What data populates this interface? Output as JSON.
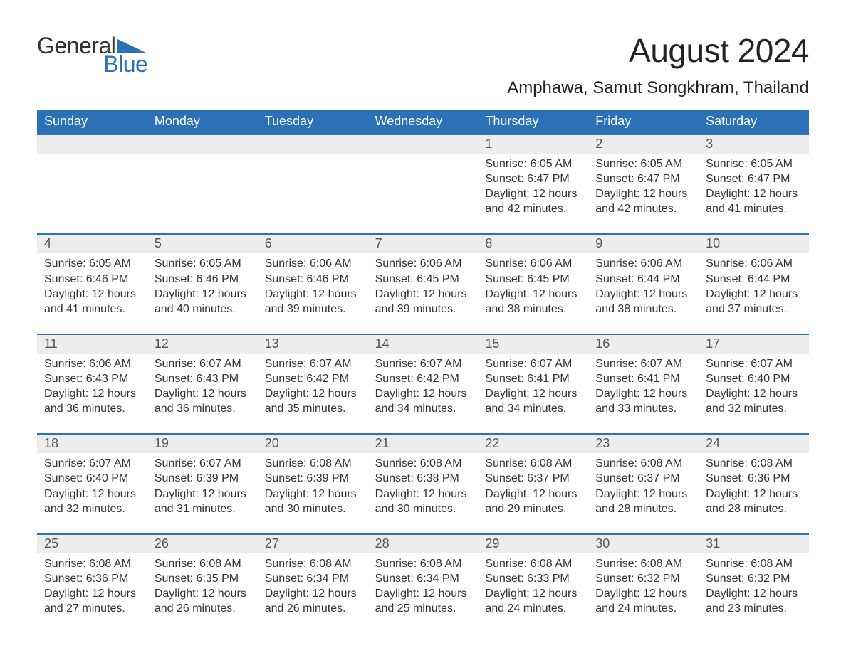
{
  "logo": {
    "text_general": "General",
    "text_blue": "Blue",
    "triangle_color": "#2a71b8"
  },
  "title": {
    "month_year": "August 2024",
    "location": "Amphawa, Samut Songkhram, Thailand"
  },
  "colors": {
    "header_bg": "#2a71b8",
    "header_text": "#ffffff",
    "daynum_bg": "#ededed",
    "daynum_border": "#2a71b8",
    "body_text": "#333333",
    "page_bg": "#ffffff"
  },
  "days_of_week": [
    "Sunday",
    "Monday",
    "Tuesday",
    "Wednesday",
    "Thursday",
    "Friday",
    "Saturday"
  ],
  "weeks": [
    [
      {
        "n": "",
        "sunrise": "",
        "sunset": "",
        "daylight": ""
      },
      {
        "n": "",
        "sunrise": "",
        "sunset": "",
        "daylight": ""
      },
      {
        "n": "",
        "sunrise": "",
        "sunset": "",
        "daylight": ""
      },
      {
        "n": "",
        "sunrise": "",
        "sunset": "",
        "daylight": ""
      },
      {
        "n": "1",
        "sunrise": "Sunrise: 6:05 AM",
        "sunset": "Sunset: 6:47 PM",
        "daylight": "Daylight: 12 hours and 42 minutes."
      },
      {
        "n": "2",
        "sunrise": "Sunrise: 6:05 AM",
        "sunset": "Sunset: 6:47 PM",
        "daylight": "Daylight: 12 hours and 42 minutes."
      },
      {
        "n": "3",
        "sunrise": "Sunrise: 6:05 AM",
        "sunset": "Sunset: 6:47 PM",
        "daylight": "Daylight: 12 hours and 41 minutes."
      }
    ],
    [
      {
        "n": "4",
        "sunrise": "Sunrise: 6:05 AM",
        "sunset": "Sunset: 6:46 PM",
        "daylight": "Daylight: 12 hours and 41 minutes."
      },
      {
        "n": "5",
        "sunrise": "Sunrise: 6:05 AM",
        "sunset": "Sunset: 6:46 PM",
        "daylight": "Daylight: 12 hours and 40 minutes."
      },
      {
        "n": "6",
        "sunrise": "Sunrise: 6:06 AM",
        "sunset": "Sunset: 6:46 PM",
        "daylight": "Daylight: 12 hours and 39 minutes."
      },
      {
        "n": "7",
        "sunrise": "Sunrise: 6:06 AM",
        "sunset": "Sunset: 6:45 PM",
        "daylight": "Daylight: 12 hours and 39 minutes."
      },
      {
        "n": "8",
        "sunrise": "Sunrise: 6:06 AM",
        "sunset": "Sunset: 6:45 PM",
        "daylight": "Daylight: 12 hours and 38 minutes."
      },
      {
        "n": "9",
        "sunrise": "Sunrise: 6:06 AM",
        "sunset": "Sunset: 6:44 PM",
        "daylight": "Daylight: 12 hours and 38 minutes."
      },
      {
        "n": "10",
        "sunrise": "Sunrise: 6:06 AM",
        "sunset": "Sunset: 6:44 PM",
        "daylight": "Daylight: 12 hours and 37 minutes."
      }
    ],
    [
      {
        "n": "11",
        "sunrise": "Sunrise: 6:06 AM",
        "sunset": "Sunset: 6:43 PM",
        "daylight": "Daylight: 12 hours and 36 minutes."
      },
      {
        "n": "12",
        "sunrise": "Sunrise: 6:07 AM",
        "sunset": "Sunset: 6:43 PM",
        "daylight": "Daylight: 12 hours and 36 minutes."
      },
      {
        "n": "13",
        "sunrise": "Sunrise: 6:07 AM",
        "sunset": "Sunset: 6:42 PM",
        "daylight": "Daylight: 12 hours and 35 minutes."
      },
      {
        "n": "14",
        "sunrise": "Sunrise: 6:07 AM",
        "sunset": "Sunset: 6:42 PM",
        "daylight": "Daylight: 12 hours and 34 minutes."
      },
      {
        "n": "15",
        "sunrise": "Sunrise: 6:07 AM",
        "sunset": "Sunset: 6:41 PM",
        "daylight": "Daylight: 12 hours and 34 minutes."
      },
      {
        "n": "16",
        "sunrise": "Sunrise: 6:07 AM",
        "sunset": "Sunset: 6:41 PM",
        "daylight": "Daylight: 12 hours and 33 minutes."
      },
      {
        "n": "17",
        "sunrise": "Sunrise: 6:07 AM",
        "sunset": "Sunset: 6:40 PM",
        "daylight": "Daylight: 12 hours and 32 minutes."
      }
    ],
    [
      {
        "n": "18",
        "sunrise": "Sunrise: 6:07 AM",
        "sunset": "Sunset: 6:40 PM",
        "daylight": "Daylight: 12 hours and 32 minutes."
      },
      {
        "n": "19",
        "sunrise": "Sunrise: 6:07 AM",
        "sunset": "Sunset: 6:39 PM",
        "daylight": "Daylight: 12 hours and 31 minutes."
      },
      {
        "n": "20",
        "sunrise": "Sunrise: 6:08 AM",
        "sunset": "Sunset: 6:39 PM",
        "daylight": "Daylight: 12 hours and 30 minutes."
      },
      {
        "n": "21",
        "sunrise": "Sunrise: 6:08 AM",
        "sunset": "Sunset: 6:38 PM",
        "daylight": "Daylight: 12 hours and 30 minutes."
      },
      {
        "n": "22",
        "sunrise": "Sunrise: 6:08 AM",
        "sunset": "Sunset: 6:37 PM",
        "daylight": "Daylight: 12 hours and 29 minutes."
      },
      {
        "n": "23",
        "sunrise": "Sunrise: 6:08 AM",
        "sunset": "Sunset: 6:37 PM",
        "daylight": "Daylight: 12 hours and 28 minutes."
      },
      {
        "n": "24",
        "sunrise": "Sunrise: 6:08 AM",
        "sunset": "Sunset: 6:36 PM",
        "daylight": "Daylight: 12 hours and 28 minutes."
      }
    ],
    [
      {
        "n": "25",
        "sunrise": "Sunrise: 6:08 AM",
        "sunset": "Sunset: 6:36 PM",
        "daylight": "Daylight: 12 hours and 27 minutes."
      },
      {
        "n": "26",
        "sunrise": "Sunrise: 6:08 AM",
        "sunset": "Sunset: 6:35 PM",
        "daylight": "Daylight: 12 hours and 26 minutes."
      },
      {
        "n": "27",
        "sunrise": "Sunrise: 6:08 AM",
        "sunset": "Sunset: 6:34 PM",
        "daylight": "Daylight: 12 hours and 26 minutes."
      },
      {
        "n": "28",
        "sunrise": "Sunrise: 6:08 AM",
        "sunset": "Sunset: 6:34 PM",
        "daylight": "Daylight: 12 hours and 25 minutes."
      },
      {
        "n": "29",
        "sunrise": "Sunrise: 6:08 AM",
        "sunset": "Sunset: 6:33 PM",
        "daylight": "Daylight: 12 hours and 24 minutes."
      },
      {
        "n": "30",
        "sunrise": "Sunrise: 6:08 AM",
        "sunset": "Sunset: 6:32 PM",
        "daylight": "Daylight: 12 hours and 24 minutes."
      },
      {
        "n": "31",
        "sunrise": "Sunrise: 6:08 AM",
        "sunset": "Sunset: 6:32 PM",
        "daylight": "Daylight: 12 hours and 23 minutes."
      }
    ]
  ]
}
